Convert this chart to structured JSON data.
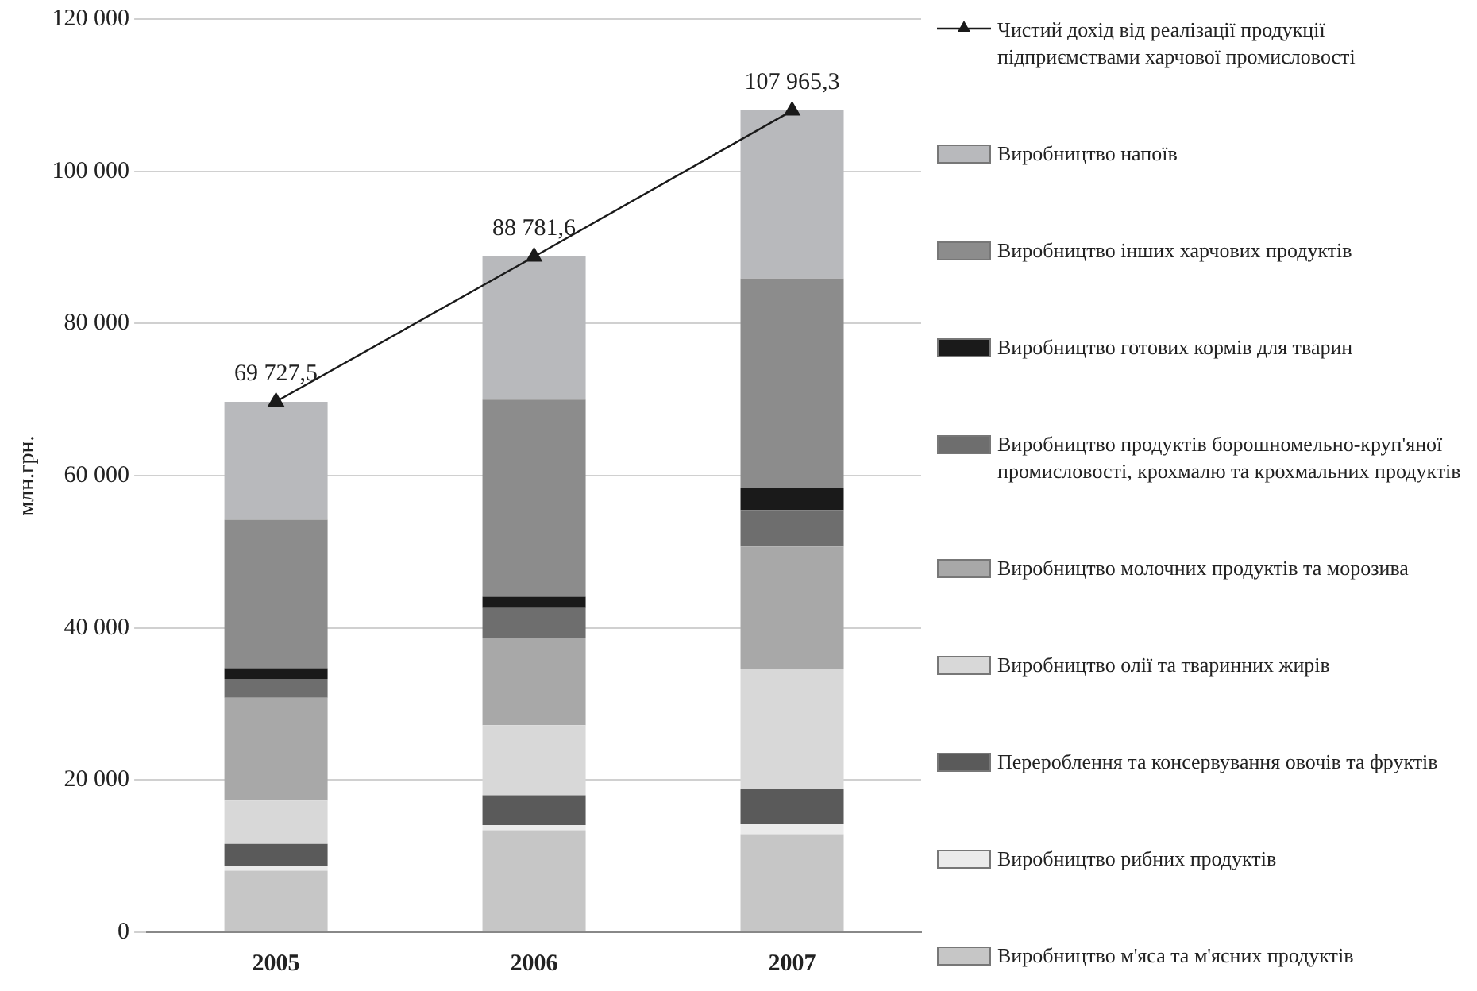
{
  "chart_data": {
    "type": "bar",
    "stacked": true,
    "ylabel": "млн.грн.",
    "categories": [
      "2005",
      "2006",
      "2007"
    ],
    "ylim": [
      0,
      120000
    ],
    "yticks": [
      {
        "value": 0,
        "label": "0"
      },
      {
        "value": 20000,
        "label": "20 000"
      },
      {
        "value": 40000,
        "label": "40 000"
      },
      {
        "value": 60000,
        "label": "60 000"
      },
      {
        "value": 80000,
        "label": "80 000"
      },
      {
        "value": 100000,
        "label": "100 000"
      },
      {
        "value": 120000,
        "label": "120 000"
      }
    ],
    "grid": "y",
    "legend": "right",
    "series": [
      {
        "name": "Виробництво м'яса та м'ясних продуктів",
        "color": "#c6c6c6",
        "values": [
          8100,
          13400,
          12900
        ]
      },
      {
        "name": "Виробництво рибних продуктів",
        "color": "#ebebeb",
        "values": [
          600,
          700,
          1300
        ]
      },
      {
        "name": "Перероблення та консервування овочів та фруктів",
        "color": "#5a5a5a",
        "values": [
          2900,
          3900,
          4700
        ]
      },
      {
        "name": "Виробництво олії та тваринних жирів",
        "color": "#d8d8d8",
        "values": [
          5700,
          9200,
          15700
        ]
      },
      {
        "name": "Виробництво молочних продуктів та морозива",
        "color": "#a8a8a8",
        "values": [
          13500,
          11500,
          16100
        ]
      },
      {
        "name": "Виробництво продуктів борошномельно-круп'яної промисловості, крохмалю та крохмальних продуктів",
        "color": "#6e6e6e",
        "values": [
          2500,
          3900,
          4800
        ]
      },
      {
        "name": "Виробництво готових кормів для тварин",
        "color": "#1a1a1a",
        "values": [
          1400,
          1500,
          2900
        ]
      },
      {
        "name": "Виробництво інших харчових продуктів",
        "color": "#8c8c8c",
        "values": [
          19500,
          25900,
          27500
        ]
      },
      {
        "name": "Виробництво напоїв",
        "color": "#b8b9bc",
        "values": [
          15500,
          18800,
          22100
        ]
      },
      {
        "name": "Чистий дохід від реалізації продукції підприємствами харчової промисловості",
        "type": "line",
        "color": "#1a1a1a",
        "marker": "triangle",
        "values": [
          69727.5,
          88781.6,
          107965.3
        ],
        "value_labels": [
          "69 727,5",
          "88 781,6",
          "107 965,3"
        ]
      }
    ]
  }
}
